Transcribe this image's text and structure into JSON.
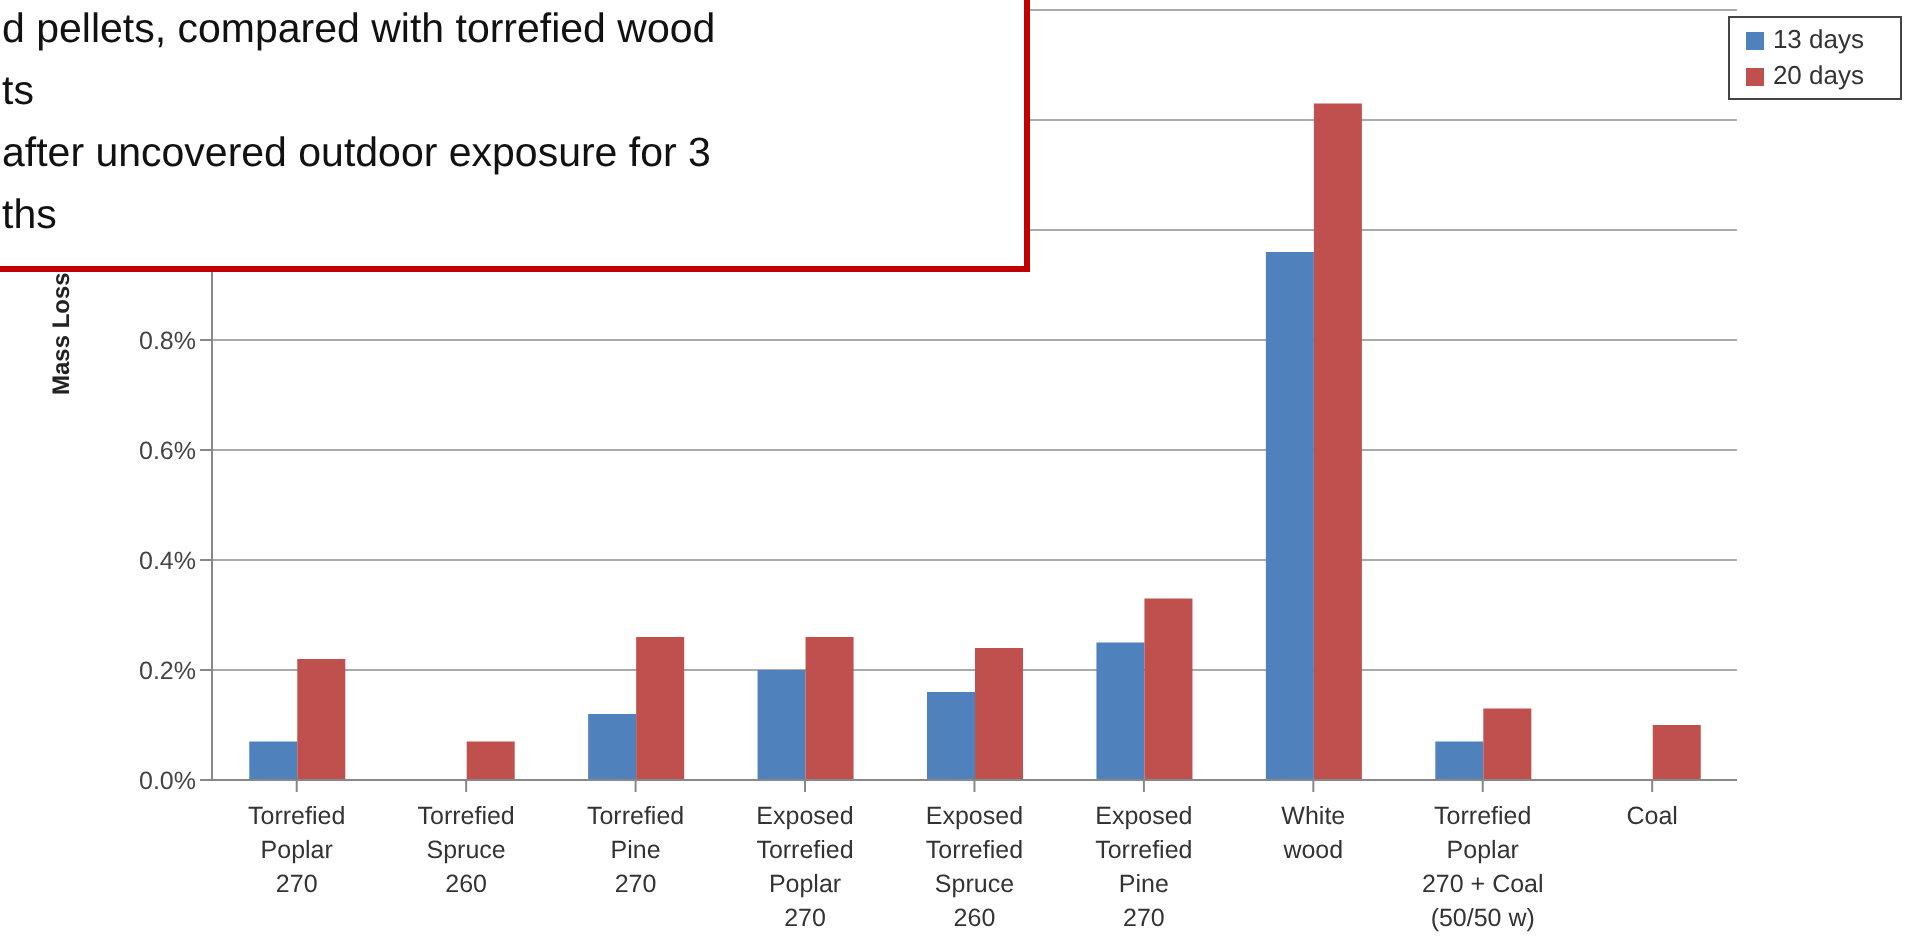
{
  "chart_data": {
    "type": "bar",
    "ylabel": "Mass Loss",
    "annotations": [
      "d pellets, compared with torrefied wood",
      "ts",
      "after uncovered outdoor exposure for 3",
      "ths"
    ],
    "categories": [
      "Torrefied\nPoplar\n270",
      "Torrefied\nSpruce\n260",
      "Torrefied\nPine\n270",
      "Exposed\nTorrefied\nPoplar\n270",
      "Exposed\nTorrefied\nSpruce\n260",
      "Exposed\nTorrefied\nPine\n270",
      "White\nwood",
      "Torrefied\nPoplar\n270 + Coal\n(50/50 w)",
      "Coal"
    ],
    "series": [
      {
        "name": "13 days",
        "color": "#4f81bd",
        "values": [
          0.07,
          null,
          0.12,
          0.2,
          0.16,
          0.25,
          0.96,
          0.07,
          null
        ]
      },
      {
        "name": "20 days",
        "color": "#c0504d",
        "values": [
          0.22,
          0.07,
          0.26,
          0.26,
          0.24,
          0.33,
          1.23,
          0.13,
          0.1
        ]
      }
    ],
    "ylim": [
      0,
      1.4
    ],
    "yticks": [
      {
        "value": 0,
        "label": "0.0%"
      },
      {
        "value": 0.2,
        "label": "0.2%"
      },
      {
        "value": 0.4,
        "label": "0.4%"
      },
      {
        "value": 0.6,
        "label": "0.6%"
      },
      {
        "value": 0.8,
        "label": "0.8%"
      },
      {
        "value": 1.0,
        "label": null
      },
      {
        "value": 1.2,
        "label": null
      },
      {
        "value": 1.4,
        "label": null
      }
    ],
    "grid": "y",
    "legend": "top right"
  }
}
